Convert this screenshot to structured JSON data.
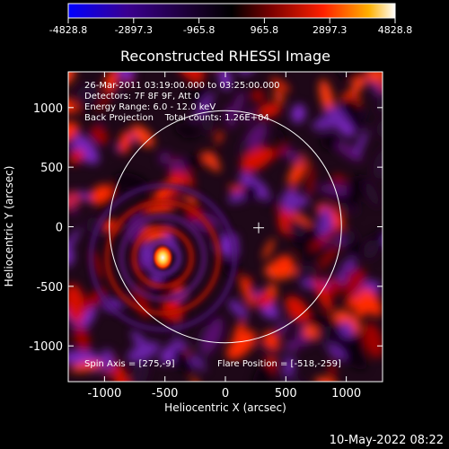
{
  "chart_data": {
    "type": "heatmap",
    "title": "Reconstructed RHESSI Image",
    "xlabel": "Heliocentric X (arcsec)",
    "ylabel": "Heliocentric Y (arcsec)",
    "xlim": [
      -1300,
      1300
    ],
    "ylim": [
      -1300,
      1300
    ],
    "xticks": [
      -1000,
      -500,
      0,
      500,
      1000
    ],
    "yticks": [
      -1000,
      -500,
      0,
      500,
      1000
    ],
    "colorbar": {
      "range": [
        -4828.8,
        4828.8
      ],
      "ticks": [
        "-4828.8",
        "-2897.3",
        "-965.8",
        "965.8",
        "2897.3",
        "4828.8"
      ],
      "colors": [
        "#0000ff",
        "#3a0090",
        "#1a0030",
        "#000000",
        "#7a0000",
        "#ff2000",
        "#ffb000",
        "#ffffff"
      ]
    },
    "annotations": [
      "26-Mar-2011 03:19:00.000 to 03:25:00.000",
      "Detectors: 7F 8F 9F, Att 0",
      "Energy Range: 6.0 - 12.0 keV",
      "Back Projection    Total counts: 1.26E+04"
    ],
    "spin_axis": "Spin Axis = [275,-9]",
    "flare_position_label": "Flare Position = [-518,-259]",
    "solar_limb_radius_arcsec": 960,
    "cross_marker": [
      275,
      -9
    ],
    "flare_source": [
      -518,
      -259
    ]
  },
  "footer": {
    "date": "10-May-2022 08:22"
  }
}
